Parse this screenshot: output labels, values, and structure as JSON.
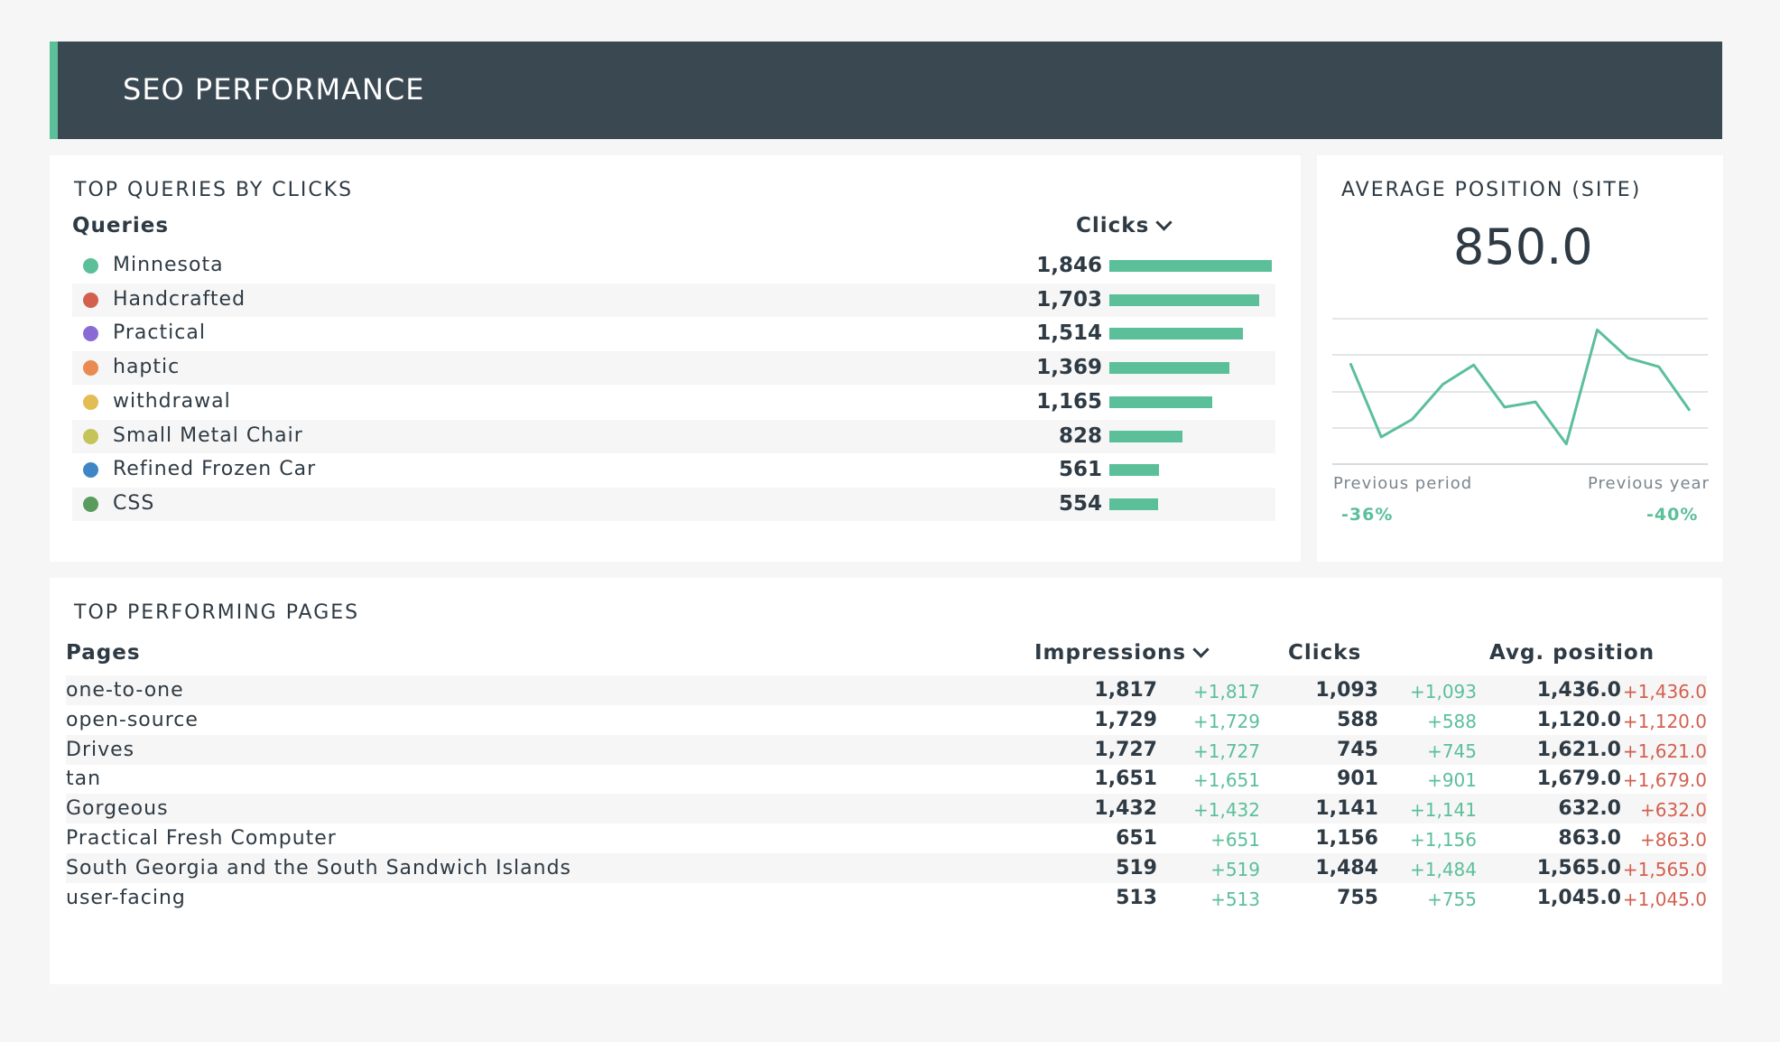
{
  "header": {
    "title": "SEO PERFORMANCE"
  },
  "queries": {
    "title": "TOP QUERIES BY CLICKS",
    "col_query": "Queries",
    "col_clicks": "Clicks",
    "max": 1846,
    "rows": [
      {
        "label": "Minnesota",
        "value": "1,846",
        "num": 1846,
        "color": "#5bbf9a"
      },
      {
        "label": "Handcrafted",
        "value": "1,703",
        "num": 1703,
        "color": "#d3604f"
      },
      {
        "label": "Practical",
        "value": "1,514",
        "num": 1514,
        "color": "#8a6bd6"
      },
      {
        "label": "haptic",
        "value": "1,369",
        "num": 1369,
        "color": "#e88a52"
      },
      {
        "label": "withdrawal",
        "value": "1,165",
        "num": 1165,
        "color": "#e2bd55"
      },
      {
        "label": "Small Metal Chair",
        "value": "828",
        "num": 828,
        "color": "#c5c45a"
      },
      {
        "label": "Refined Frozen Car",
        "value": "561",
        "num": 561,
        "color": "#3f86c6"
      },
      {
        "label": "CSS",
        "value": "554",
        "num": 554,
        "color": "#5a9c5e"
      }
    ]
  },
  "avg_position": {
    "title": "AVERAGE POSITION (SITE)",
    "value": "850.0",
    "sparkline": [
      890,
      470,
      570,
      770,
      880,
      640,
      670,
      430,
      1080,
      920,
      870,
      620
    ],
    "prev_period_label": "Previous period",
    "prev_period_value": "-36%",
    "prev_year_label": "Previous year",
    "prev_year_value": "-40%",
    "accent": "#5bbf9a"
  },
  "pages": {
    "title": "TOP PERFORMING PAGES",
    "col_pages": "Pages",
    "col_impressions": "Impressions",
    "col_clicks": "Clicks",
    "col_position": "Avg. position",
    "rows": [
      {
        "name": "one-to-one",
        "impr": "1,817",
        "impr_d": "+1,817",
        "clicks": "1,093",
        "clicks_d": "+1,093",
        "pos": "1,436.0",
        "pos_d": "+1,436.0"
      },
      {
        "name": "open-source",
        "impr": "1,729",
        "impr_d": "+1,729",
        "clicks": "588",
        "clicks_d": "+588",
        "pos": "1,120.0",
        "pos_d": "+1,120.0"
      },
      {
        "name": "Drives",
        "impr": "1,727",
        "impr_d": "+1,727",
        "clicks": "745",
        "clicks_d": "+745",
        "pos": "1,621.0",
        "pos_d": "+1,621.0"
      },
      {
        "name": "tan",
        "impr": "1,651",
        "impr_d": "+1,651",
        "clicks": "901",
        "clicks_d": "+901",
        "pos": "1,679.0",
        "pos_d": "+1,679.0"
      },
      {
        "name": "Gorgeous",
        "impr": "1,432",
        "impr_d": "+1,432",
        "clicks": "1,141",
        "clicks_d": "+1,141",
        "pos": "632.0",
        "pos_d": "+632.0"
      },
      {
        "name": "Practical Fresh Computer",
        "impr": "651",
        "impr_d": "+651",
        "clicks": "1,156",
        "clicks_d": "+1,156",
        "pos": "863.0",
        "pos_d": "+863.0"
      },
      {
        "name": "South Georgia and the South Sandwich Islands",
        "impr": "519",
        "impr_d": "+519",
        "clicks": "1,484",
        "clicks_d": "+1,484",
        "pos": "1,565.0",
        "pos_d": "+1,565.0"
      },
      {
        "name": "user-facing",
        "impr": "513",
        "impr_d": "+513",
        "clicks": "755",
        "clicks_d": "+755",
        "pos": "1,045.0",
        "pos_d": "+1,045.0"
      }
    ]
  }
}
